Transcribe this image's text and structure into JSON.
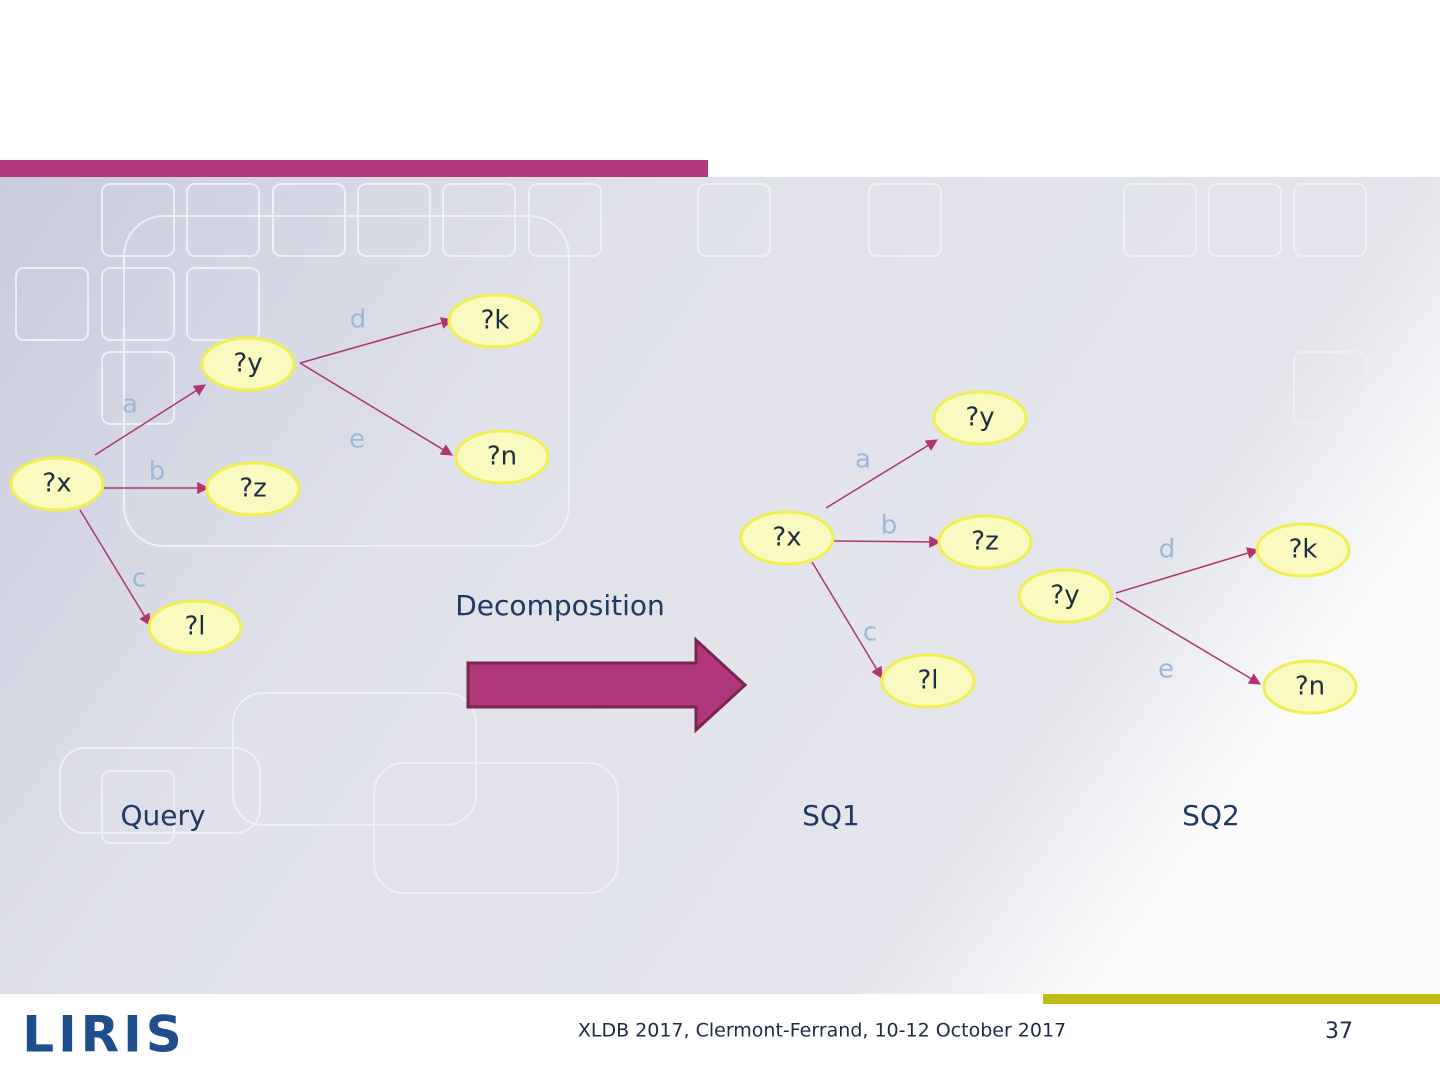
{
  "query": {
    "label": "Query",
    "nodes": [
      "?x",
      "?y",
      "?z",
      "?l",
      "?k",
      "?n"
    ],
    "edges": [
      "a",
      "b",
      "c",
      "d",
      "e"
    ]
  },
  "operation": "Decomposition",
  "sq1": {
    "label": "SQ1",
    "nodes": [
      "?x",
      "?y",
      "?z",
      "?l"
    ],
    "edges": [
      "a",
      "b",
      "c"
    ]
  },
  "sq2": {
    "label": "SQ2",
    "nodes": [
      "?y",
      "?k",
      "?n"
    ],
    "edges": [
      "d",
      "e"
    ]
  },
  "footer": {
    "logo": "LIRIS",
    "text": "XLDB 2017,  Clermont-Ferrand, 10-12 October 2017",
    "page": "37"
  }
}
